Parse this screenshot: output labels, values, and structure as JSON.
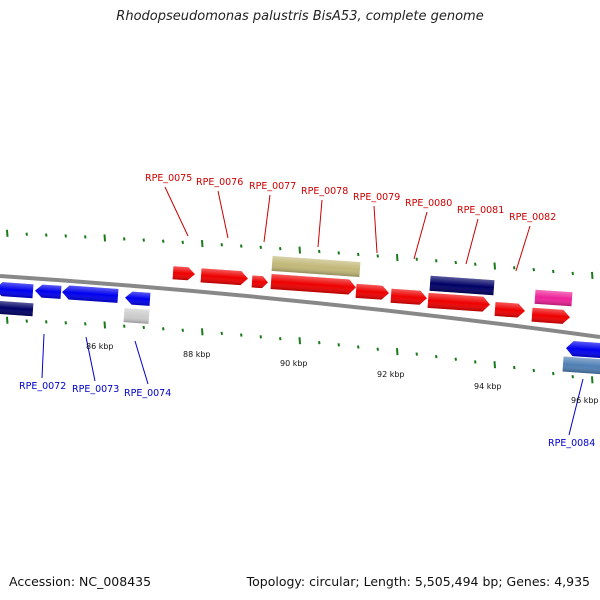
{
  "title": "Rhodopseudomonas palustris BisA53, complete genome",
  "footer": {
    "accession": "Accession: NC_008435",
    "summary": "Topology: circular; Length: 5,505,494 bp; Genes: 4,935"
  },
  "colors": {
    "backbone": "#888888",
    "tick": "#1a7a1a",
    "forward_label": "#cc0000",
    "reverse_label": "#0000cc",
    "gene_red": "#ee0000",
    "gene_blue": "#0000ee",
    "gene_navy": "#000066",
    "gene_khaki": "#c2b878",
    "gene_pink": "#ee2299",
    "gene_grey": "#cccccc",
    "gene_steel": "#4f7fb4"
  },
  "scale_labels": [
    "86 kbp",
    "88 kbp",
    "90 kbp",
    "92 kbp",
    "94 kbp",
    "96 kbp"
  ],
  "forward_labels": [
    "RPE_0075",
    "RPE_0076",
    "RPE_0077",
    "RPE_0078",
    "RPE_0079",
    "RPE_0080",
    "RPE_0081",
    "RPE_0082"
  ],
  "reverse_labels": [
    "RPE_0072",
    "RPE_0073",
    "RPE_0074",
    "RPE_0084"
  ]
}
